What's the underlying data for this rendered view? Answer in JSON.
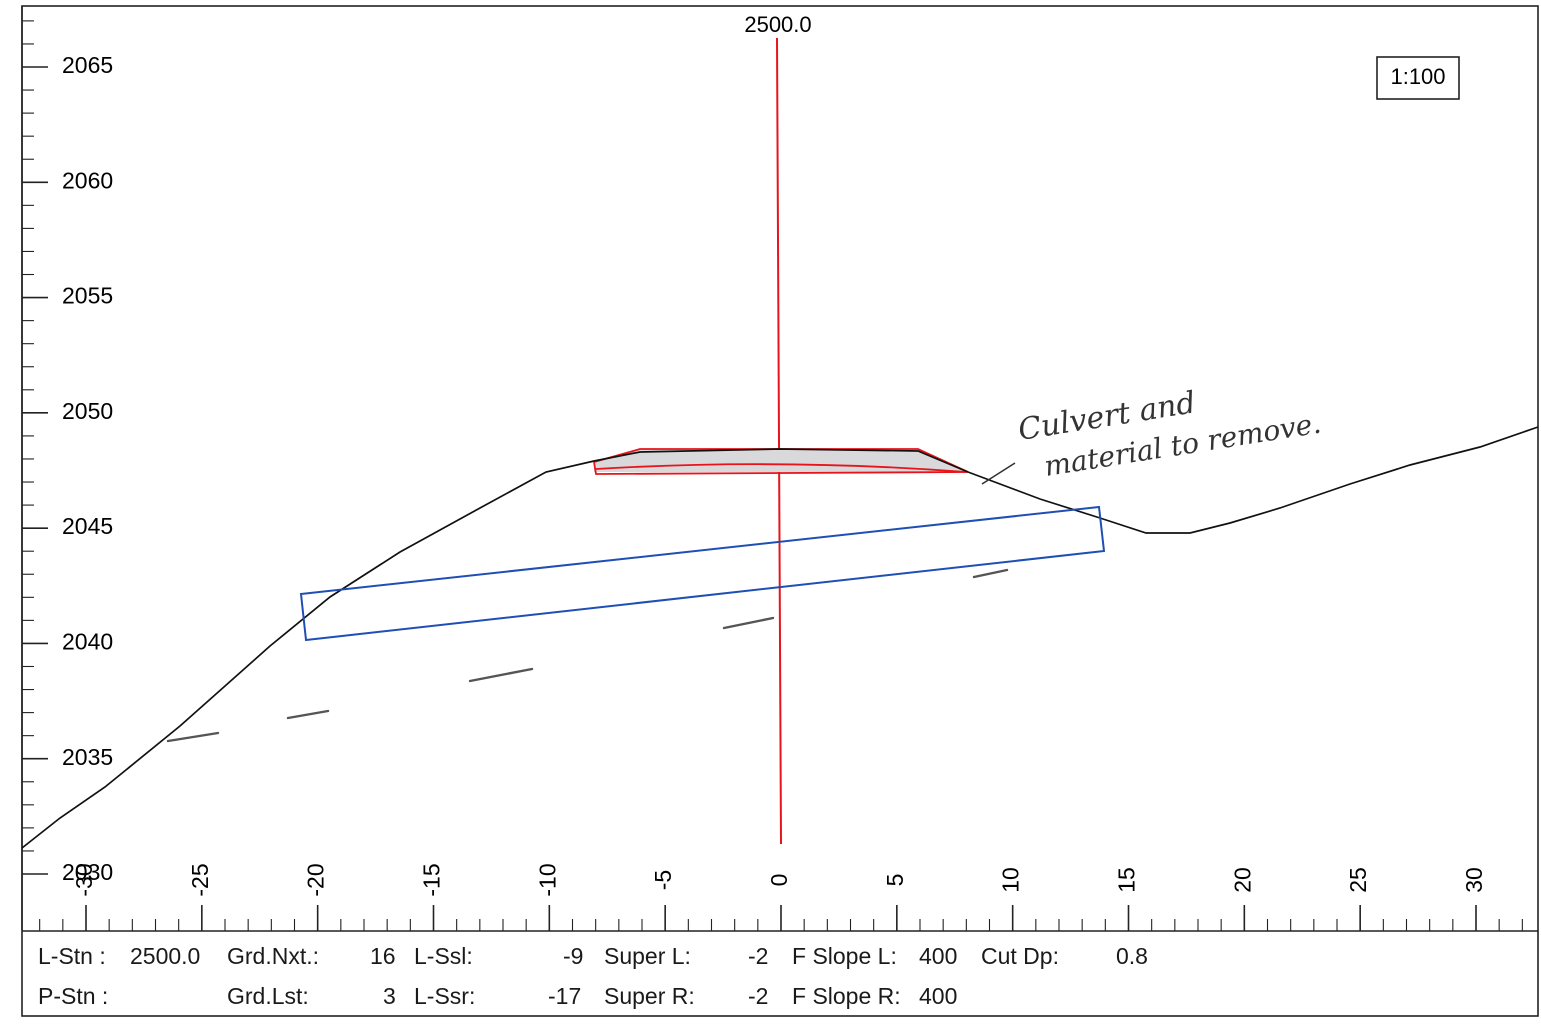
{
  "section": {
    "station_label": "2500.0",
    "scale": "1:100"
  },
  "y_axis": {
    "ticks": [
      2065,
      2060,
      2055,
      2050,
      2045,
      2040,
      2035,
      2030
    ]
  },
  "x_axis": {
    "ticks": [
      -30,
      -25,
      -20,
      -15,
      -10,
      -5,
      0,
      5,
      10,
      15,
      20,
      25,
      30
    ]
  },
  "annotation": {
    "line1": "Culvert and",
    "line2": "material to remove."
  },
  "status": {
    "l_stn_label": "L-Stn :",
    "l_stn_value": "2500.0",
    "p_stn_label": "P-Stn :",
    "grd_nxt_label": "Grd.Nxt.:",
    "grd_nxt_value": "16",
    "grd_lst_label": "Grd.Lst:",
    "grd_lst_value": "3",
    "l_ssl_label": "L-Ssl:",
    "l_ssl_value": "-9",
    "l_ssr_label": "L-Ssr:",
    "l_ssr_value": "-17",
    "super_l_label": "Super L:",
    "super_l_value": "-2",
    "super_r_label": "Super R:",
    "super_r_value": "-2",
    "f_slope_l_label": "F Slope L:",
    "f_slope_l_value": "400",
    "f_slope_r_label": "F Slope R:",
    "f_slope_r_value": "400",
    "cut_dp_label": "Cut Dp:",
    "cut_dp_value": "0.8"
  },
  "colors": {
    "centerline": "#e8141b",
    "culvert": "#1f4fb4",
    "ground": "#111111",
    "removal_fill": "#d9d9db"
  }
}
